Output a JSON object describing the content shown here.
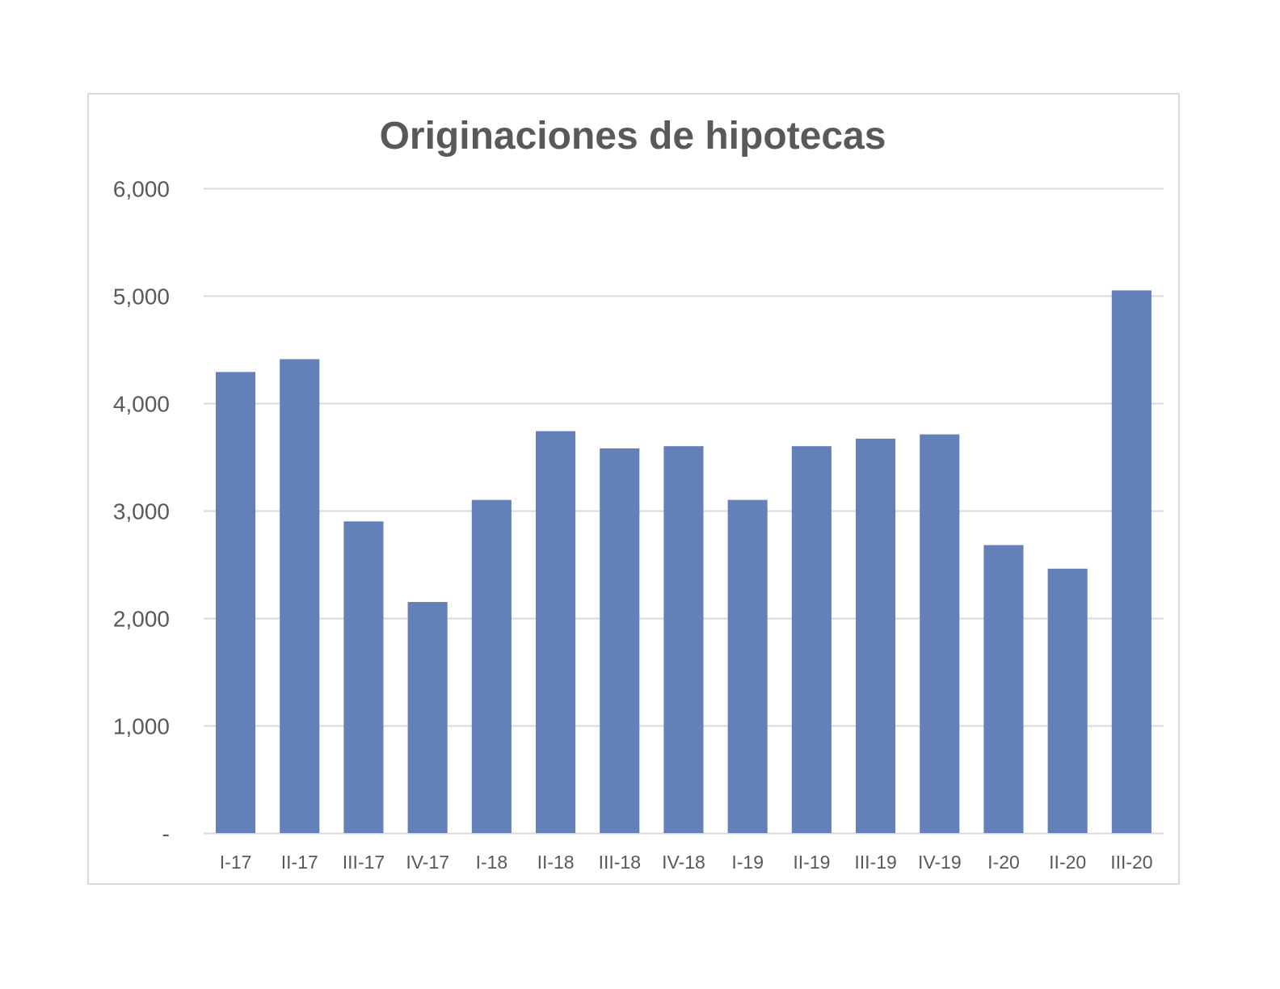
{
  "chart_data": {
    "type": "bar",
    "title": "Originaciones de hipotecas",
    "xlabel": "",
    "ylabel": "",
    "categories": [
      "I-17",
      "II-17",
      "III-17",
      "IV-17",
      "I-18",
      "II-18",
      "III-18",
      "IV-18",
      "I-19",
      "II-19",
      "III-19",
      "IV-19",
      "I-20",
      "II-20",
      "III-20"
    ],
    "values": [
      4290,
      4410,
      2900,
      2150,
      3100,
      3740,
      3580,
      3600,
      3100,
      3600,
      3670,
      3710,
      2680,
      2460,
      5050
    ],
    "ylim": [
      0,
      6000
    ],
    "yticks": [
      0,
      1000,
      2000,
      3000,
      4000,
      5000,
      6000
    ],
    "ytick_labels": [
      "-",
      "1,000",
      "2,000",
      "3,000",
      "4,000",
      "5,000",
      "6,000"
    ],
    "grid": true,
    "legend": "none",
    "bar_color": "#6480b9",
    "grid_color": "#d9d9d9",
    "text_color": "#595959"
  }
}
